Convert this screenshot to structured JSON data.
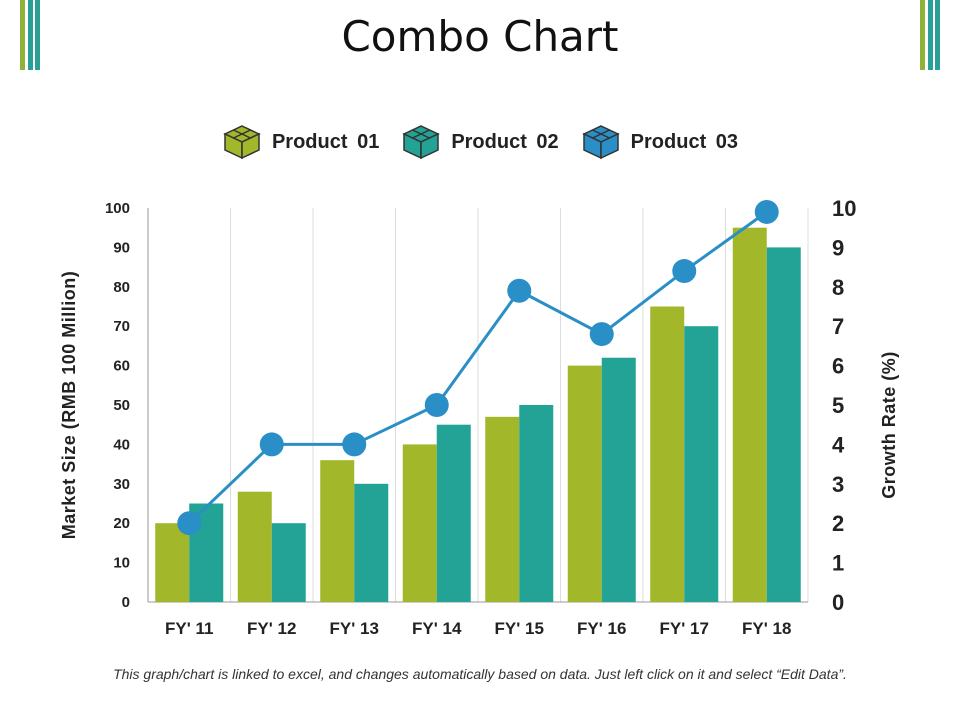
{
  "title": "Combo Chart",
  "footnote": "This graph/chart is linked to excel, and changes automatically based on data. Just left click on it and select “Edit Data”.",
  "colors": {
    "product_01": "#a3b72a",
    "product_02": "#22a395",
    "line": "#2a8fc6",
    "deco_green": "#8db339",
    "deco_teal": "#2a9f98"
  },
  "legend": [
    {
      "label": "Product 01",
      "icon": "box-icon",
      "color": "#a3b72a"
    },
    {
      "label": "Product 02",
      "icon": "box-icon",
      "color": "#22a395"
    },
    {
      "label": "Product 03",
      "icon": "box-icon",
      "color": "#2a8fc6"
    }
  ],
  "chart_data": {
    "type": "bar",
    "categories": [
      "FY' 11",
      "FY' 12",
      "FY' 13",
      "FY' 14",
      "FY' 15",
      "FY' 16",
      "FY' 17",
      "FY' 18"
    ],
    "series": [
      {
        "name": "Product 01",
        "type": "bar",
        "axis": "left",
        "values": [
          20,
          28,
          36,
          40,
          47,
          60,
          75,
          95
        ]
      },
      {
        "name": "Product 02",
        "type": "bar",
        "axis": "left",
        "values": [
          25,
          20,
          30,
          45,
          50,
          62,
          70,
          90
        ]
      },
      {
        "name": "Product 03",
        "type": "line",
        "axis": "right",
        "values": [
          2,
          4,
          4,
          5,
          7.9,
          6.8,
          8.4,
          9.9
        ]
      }
    ],
    "ylabel": "Market Size (RMB 100 Million)",
    "y2label": "Growth Rate (%)",
    "ylim": [
      0,
      100
    ],
    "y2lim": [
      0,
      10
    ],
    "yticks": [
      "0",
      "10",
      "20",
      "30",
      "40",
      "50",
      "60",
      "70",
      "80",
      "90",
      "100"
    ],
    "y2ticks": [
      "0",
      "1",
      "2",
      "3",
      "4",
      "5",
      "6",
      "7",
      "8",
      "9",
      "10"
    ],
    "grid": "vertical"
  }
}
